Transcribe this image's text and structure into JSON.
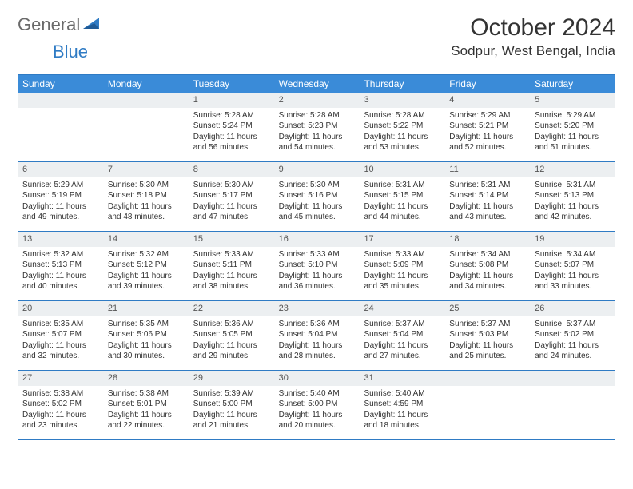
{
  "logo": {
    "text1": "General",
    "text2": "Blue"
  },
  "title": "October 2024",
  "location": "Sodpur, West Bengal, India",
  "colors": {
    "header_bar": "#3a8bd8",
    "border": "#2f7bc4",
    "daynum_bg": "#eceff1",
    "text": "#333333",
    "logo_gray": "#6a6a6a",
    "logo_blue": "#2f7bc4"
  },
  "weekdays": [
    "Sunday",
    "Monday",
    "Tuesday",
    "Wednesday",
    "Thursday",
    "Friday",
    "Saturday"
  ],
  "weeks": [
    [
      null,
      null,
      {
        "n": "1",
        "sr": "5:28 AM",
        "ss": "5:24 PM",
        "dl": "11 hours and 56 minutes."
      },
      {
        "n": "2",
        "sr": "5:28 AM",
        "ss": "5:23 PM",
        "dl": "11 hours and 54 minutes."
      },
      {
        "n": "3",
        "sr": "5:28 AM",
        "ss": "5:22 PM",
        "dl": "11 hours and 53 minutes."
      },
      {
        "n": "4",
        "sr": "5:29 AM",
        "ss": "5:21 PM",
        "dl": "11 hours and 52 minutes."
      },
      {
        "n": "5",
        "sr": "5:29 AM",
        "ss": "5:20 PM",
        "dl": "11 hours and 51 minutes."
      }
    ],
    [
      {
        "n": "6",
        "sr": "5:29 AM",
        "ss": "5:19 PM",
        "dl": "11 hours and 49 minutes."
      },
      {
        "n": "7",
        "sr": "5:30 AM",
        "ss": "5:18 PM",
        "dl": "11 hours and 48 minutes."
      },
      {
        "n": "8",
        "sr": "5:30 AM",
        "ss": "5:17 PM",
        "dl": "11 hours and 47 minutes."
      },
      {
        "n": "9",
        "sr": "5:30 AM",
        "ss": "5:16 PM",
        "dl": "11 hours and 45 minutes."
      },
      {
        "n": "10",
        "sr": "5:31 AM",
        "ss": "5:15 PM",
        "dl": "11 hours and 44 minutes."
      },
      {
        "n": "11",
        "sr": "5:31 AM",
        "ss": "5:14 PM",
        "dl": "11 hours and 43 minutes."
      },
      {
        "n": "12",
        "sr": "5:31 AM",
        "ss": "5:13 PM",
        "dl": "11 hours and 42 minutes."
      }
    ],
    [
      {
        "n": "13",
        "sr": "5:32 AM",
        "ss": "5:13 PM",
        "dl": "11 hours and 40 minutes."
      },
      {
        "n": "14",
        "sr": "5:32 AM",
        "ss": "5:12 PM",
        "dl": "11 hours and 39 minutes."
      },
      {
        "n": "15",
        "sr": "5:33 AM",
        "ss": "5:11 PM",
        "dl": "11 hours and 38 minutes."
      },
      {
        "n": "16",
        "sr": "5:33 AM",
        "ss": "5:10 PM",
        "dl": "11 hours and 36 minutes."
      },
      {
        "n": "17",
        "sr": "5:33 AM",
        "ss": "5:09 PM",
        "dl": "11 hours and 35 minutes."
      },
      {
        "n": "18",
        "sr": "5:34 AM",
        "ss": "5:08 PM",
        "dl": "11 hours and 34 minutes."
      },
      {
        "n": "19",
        "sr": "5:34 AM",
        "ss": "5:07 PM",
        "dl": "11 hours and 33 minutes."
      }
    ],
    [
      {
        "n": "20",
        "sr": "5:35 AM",
        "ss": "5:07 PM",
        "dl": "11 hours and 32 minutes."
      },
      {
        "n": "21",
        "sr": "5:35 AM",
        "ss": "5:06 PM",
        "dl": "11 hours and 30 minutes."
      },
      {
        "n": "22",
        "sr": "5:36 AM",
        "ss": "5:05 PM",
        "dl": "11 hours and 29 minutes."
      },
      {
        "n": "23",
        "sr": "5:36 AM",
        "ss": "5:04 PM",
        "dl": "11 hours and 28 minutes."
      },
      {
        "n": "24",
        "sr": "5:37 AM",
        "ss": "5:04 PM",
        "dl": "11 hours and 27 minutes."
      },
      {
        "n": "25",
        "sr": "5:37 AM",
        "ss": "5:03 PM",
        "dl": "11 hours and 25 minutes."
      },
      {
        "n": "26",
        "sr": "5:37 AM",
        "ss": "5:02 PM",
        "dl": "11 hours and 24 minutes."
      }
    ],
    [
      {
        "n": "27",
        "sr": "5:38 AM",
        "ss": "5:02 PM",
        "dl": "11 hours and 23 minutes."
      },
      {
        "n": "28",
        "sr": "5:38 AM",
        "ss": "5:01 PM",
        "dl": "11 hours and 22 minutes."
      },
      {
        "n": "29",
        "sr": "5:39 AM",
        "ss": "5:00 PM",
        "dl": "11 hours and 21 minutes."
      },
      {
        "n": "30",
        "sr": "5:40 AM",
        "ss": "5:00 PM",
        "dl": "11 hours and 20 minutes."
      },
      {
        "n": "31",
        "sr": "5:40 AM",
        "ss": "4:59 PM",
        "dl": "11 hours and 18 minutes."
      },
      null,
      null
    ]
  ],
  "labels": {
    "sunrise": "Sunrise:",
    "sunset": "Sunset:",
    "daylight": "Daylight:"
  }
}
